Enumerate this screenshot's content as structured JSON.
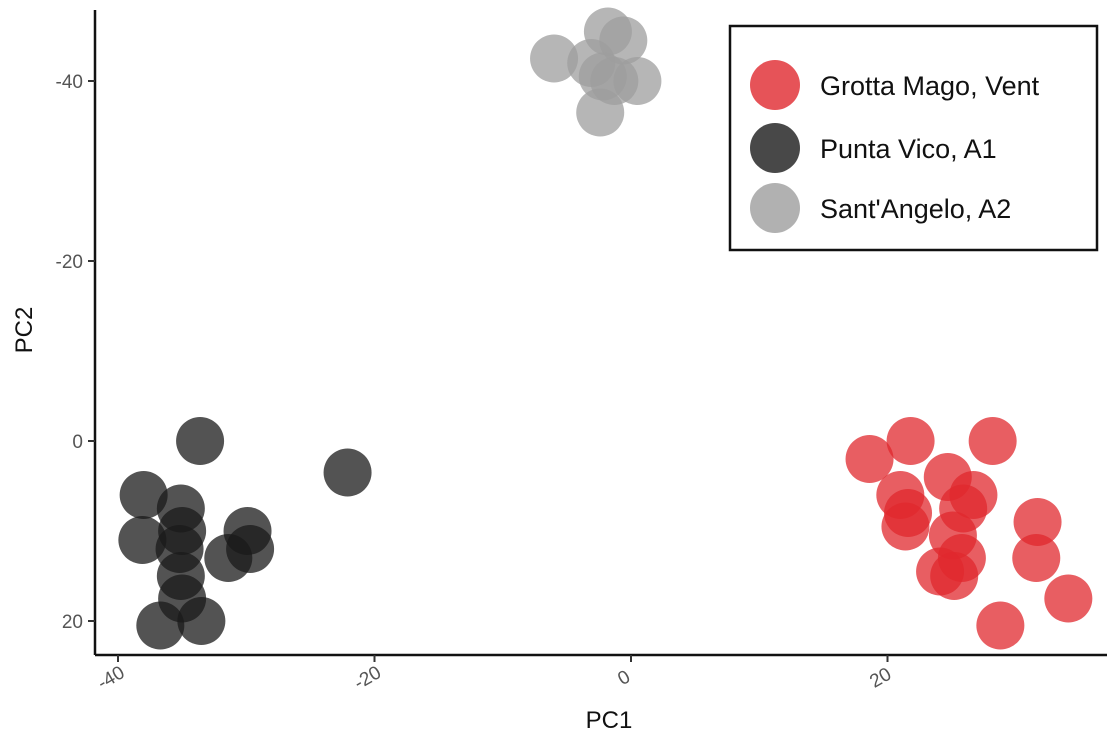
{
  "chart_data": {
    "type": "scatter",
    "xlabel": "PC1",
    "ylabel": "PC2",
    "xlim": [
      -42,
      37
    ],
    "ylim": [
      24,
      -48
    ],
    "y_reversed": true,
    "x_ticks": [
      {
        "value": -40,
        "label": "-40"
      },
      {
        "value": -20,
        "label": "-20"
      },
      {
        "value": 0,
        "label": "0"
      },
      {
        "value": 20,
        "label": "20"
      }
    ],
    "y_ticks": [
      {
        "value": -40,
        "label": "-40"
      },
      {
        "value": -20,
        "label": "-20"
      },
      {
        "value": 0,
        "label": "0"
      },
      {
        "value": 20,
        "label": "20"
      }
    ],
    "grid": false,
    "legend_position": "top-right",
    "series": [
      {
        "name": "Grotta Mago, Vent",
        "color": "#e0282e",
        "points": [
          [
            18.6,
            2
          ],
          [
            21.8,
            0
          ],
          [
            28.2,
            0
          ],
          [
            21,
            6
          ],
          [
            21.6,
            8
          ],
          [
            24.7,
            4
          ],
          [
            26.7,
            6
          ],
          [
            25.9,
            7.5
          ],
          [
            21.4,
            9.5
          ],
          [
            25.1,
            10.5
          ],
          [
            31.7,
            9
          ],
          [
            25.8,
            13
          ],
          [
            31.6,
            13
          ],
          [
            24.1,
            14.5
          ],
          [
            25.2,
            15
          ],
          [
            34.1,
            17.5
          ],
          [
            28.8,
            20.5
          ]
        ]
      },
      {
        "name": "Punta Vico, A1",
        "color": "#1a1a1a",
        "points": [
          [
            -33.6,
            0
          ],
          [
            -22.1,
            3.5
          ],
          [
            -38,
            6
          ],
          [
            -35.1,
            7.5
          ],
          [
            -35,
            10
          ],
          [
            -29.9,
            10
          ],
          [
            -38.1,
            11
          ],
          [
            -35.2,
            12
          ],
          [
            -29.7,
            12
          ],
          [
            -31.4,
            13
          ],
          [
            -35.1,
            15
          ],
          [
            -35,
            17.5
          ],
          [
            -36.7,
            20.5
          ],
          [
            -33.5,
            20
          ]
        ]
      },
      {
        "name": "Sant'Angelo, A2",
        "color": "#9e9e9e",
        "points": [
          [
            -6,
            -42.5
          ],
          [
            -1.8,
            -45.5
          ],
          [
            -0.6,
            -44.5
          ],
          [
            -3.1,
            -42
          ],
          [
            -1.3,
            -40
          ],
          [
            -2.2,
            -40.5
          ],
          [
            0.5,
            -40
          ],
          [
            -2.4,
            -36.5
          ]
        ]
      }
    ]
  }
}
